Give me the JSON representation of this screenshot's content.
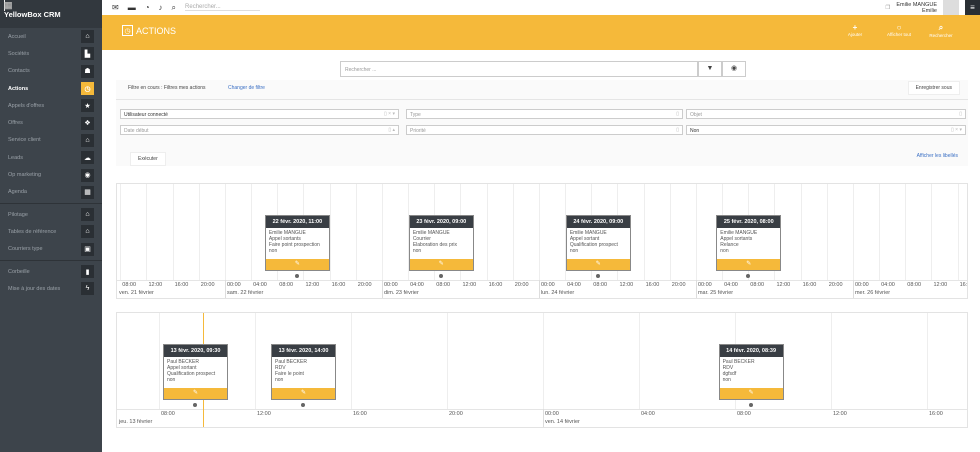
{
  "app": {
    "brand": "YellowBox CRM"
  },
  "sidebar": {
    "items": [
      {
        "label": "Accueil",
        "icon": "home-icon",
        "glyph": "⌂"
      },
      {
        "label": "Sociétés",
        "icon": "building-icon",
        "glyph": "▙"
      },
      {
        "label": "Contacts",
        "icon": "users-icon",
        "glyph": "☗"
      },
      {
        "label": "Actions",
        "icon": "clock-icon",
        "glyph": "◷",
        "active": true
      },
      {
        "label": "Appels d'offres",
        "icon": "star-icon",
        "glyph": "★"
      },
      {
        "label": "Offres",
        "icon": "handshake-icon",
        "glyph": "❖"
      },
      {
        "label": "Service client",
        "icon": "home-icon",
        "glyph": "⌂"
      },
      {
        "label": "Leads",
        "icon": "cloud-icon",
        "glyph": "☁"
      },
      {
        "label": "Op marketing",
        "icon": "bullhorn-icon",
        "glyph": "◉"
      },
      {
        "label": "Agenda",
        "icon": "calendar-icon",
        "glyph": "▦"
      },
      {
        "label": "Pilotage",
        "icon": "home-icon",
        "glyph": "⌂",
        "sep": true
      },
      {
        "label": "Tables de référence",
        "icon": "home-icon",
        "glyph": "⌂"
      },
      {
        "label": "Courriers type",
        "icon": "clipboard-icon",
        "glyph": "▣"
      },
      {
        "label": "Corbeille",
        "icon": "trash-icon",
        "glyph": "▮",
        "sep": true
      },
      {
        "label": "Mise à jour des dates",
        "icon": "bolt-icon",
        "glyph": "ϟ"
      }
    ]
  },
  "topbar": {
    "search_placeholder": "Rechercher...",
    "user_name": "Emilie MANGUE",
    "user_first": "Emilie"
  },
  "header": {
    "title": "ACTIONS",
    "buttons": [
      {
        "label": "Ajouter",
        "glyph": "+"
      },
      {
        "label": "Afficher tout",
        "glyph": "○"
      },
      {
        "label": "Rechercher",
        "glyph": "⌕"
      }
    ]
  },
  "search": {
    "placeholder": "Rechercher ..."
  },
  "filter": {
    "current": "Filtre en cours : Filtres mes actions",
    "change": "Changer de filtre",
    "save_as": "Enregistrer sous",
    "fields": [
      {
        "value": "Utilisateur connecté",
        "placeholder": ""
      },
      {
        "value": "",
        "placeholder": "Type"
      },
      {
        "value": "",
        "placeholder": "Objet"
      },
      {
        "value": "",
        "placeholder": "Date début"
      },
      {
        "value": "",
        "placeholder": "Priorité"
      },
      {
        "value": "Non",
        "placeholder": ""
      }
    ],
    "execute": "Exécuter",
    "show_labels": "Afficher les libellés"
  },
  "timelines": [
    {
      "days": [
        {
          "label": "ven. 21 février",
          "ticks": [
            "08:00",
            "12:00",
            "16:00",
            "20:00"
          ]
        },
        {
          "label": "sam. 22 février",
          "ticks": [
            "00:00",
            "04:00",
            "08:00",
            "12:00",
            "16:00",
            "20:00"
          ]
        },
        {
          "label": "dim. 23 février",
          "ticks": [
            "00:00",
            "04:00",
            "08:00",
            "12:00",
            "16:00",
            "20:00"
          ]
        },
        {
          "label": "lun. 24 février",
          "ticks": [
            "00:00",
            "04:00",
            "08:00",
            "12:00",
            "16:00",
            "20:00"
          ]
        },
        {
          "label": "mar. 25 février",
          "ticks": [
            "00:00",
            "04:00",
            "08:00",
            "12:00",
            "16:00",
            "20:00"
          ]
        },
        {
          "label": "mer. 26 février",
          "ticks": [
            "00:00",
            "04:00",
            "08:00",
            "12:00",
            "16:00"
          ]
        }
      ],
      "events": [
        {
          "title": "22 févr. 2020, 11:00",
          "lines": [
            "Emilie MANGUE",
            "Appel sortants",
            "Faire point prospection",
            "non"
          ]
        },
        {
          "title": "23 févr. 2020, 09:00",
          "lines": [
            "Emilie MANGUE",
            "Courrier",
            "Elaboration des prix",
            "non"
          ]
        },
        {
          "title": "24 févr. 2020, 09:00",
          "lines": [
            "Emilie MANGUE",
            "Appel sortant",
            "Qualification prospect",
            "non"
          ]
        },
        {
          "title": "25 févr. 2020, 08:00",
          "lines": [
            "Emilie MANGUE",
            "Appel sortants",
            "Relance",
            "non"
          ]
        }
      ]
    },
    {
      "days": [
        {
          "label": "jeu. 13 février",
          "ticks": [
            "08:00",
            "12:00",
            "16:00",
            "20:00"
          ]
        },
        {
          "label": "ven. 14 février",
          "ticks": [
            "00:00",
            "04:00",
            "08:00",
            "12:00",
            "16:00"
          ]
        }
      ],
      "events": [
        {
          "title": "13 févr. 2020, 09:30",
          "lines": [
            "Paul BECKER",
            "Appel sortant",
            "Qualification prospect",
            "non"
          ]
        },
        {
          "title": "13 févr. 2020, 14:00",
          "lines": [
            "Paul BECKER",
            "RDV",
            "Faire le point",
            "non"
          ]
        },
        {
          "title": "14 févr. 2020, 08:39",
          "lines": [
            "Paul BECKER",
            "RDV",
            "dgfsdf",
            "non"
          ]
        }
      ]
    }
  ],
  "colors": {
    "accent": "#f5b93a",
    "sidebar": "#3d444b",
    "card_header": "#393e44"
  }
}
